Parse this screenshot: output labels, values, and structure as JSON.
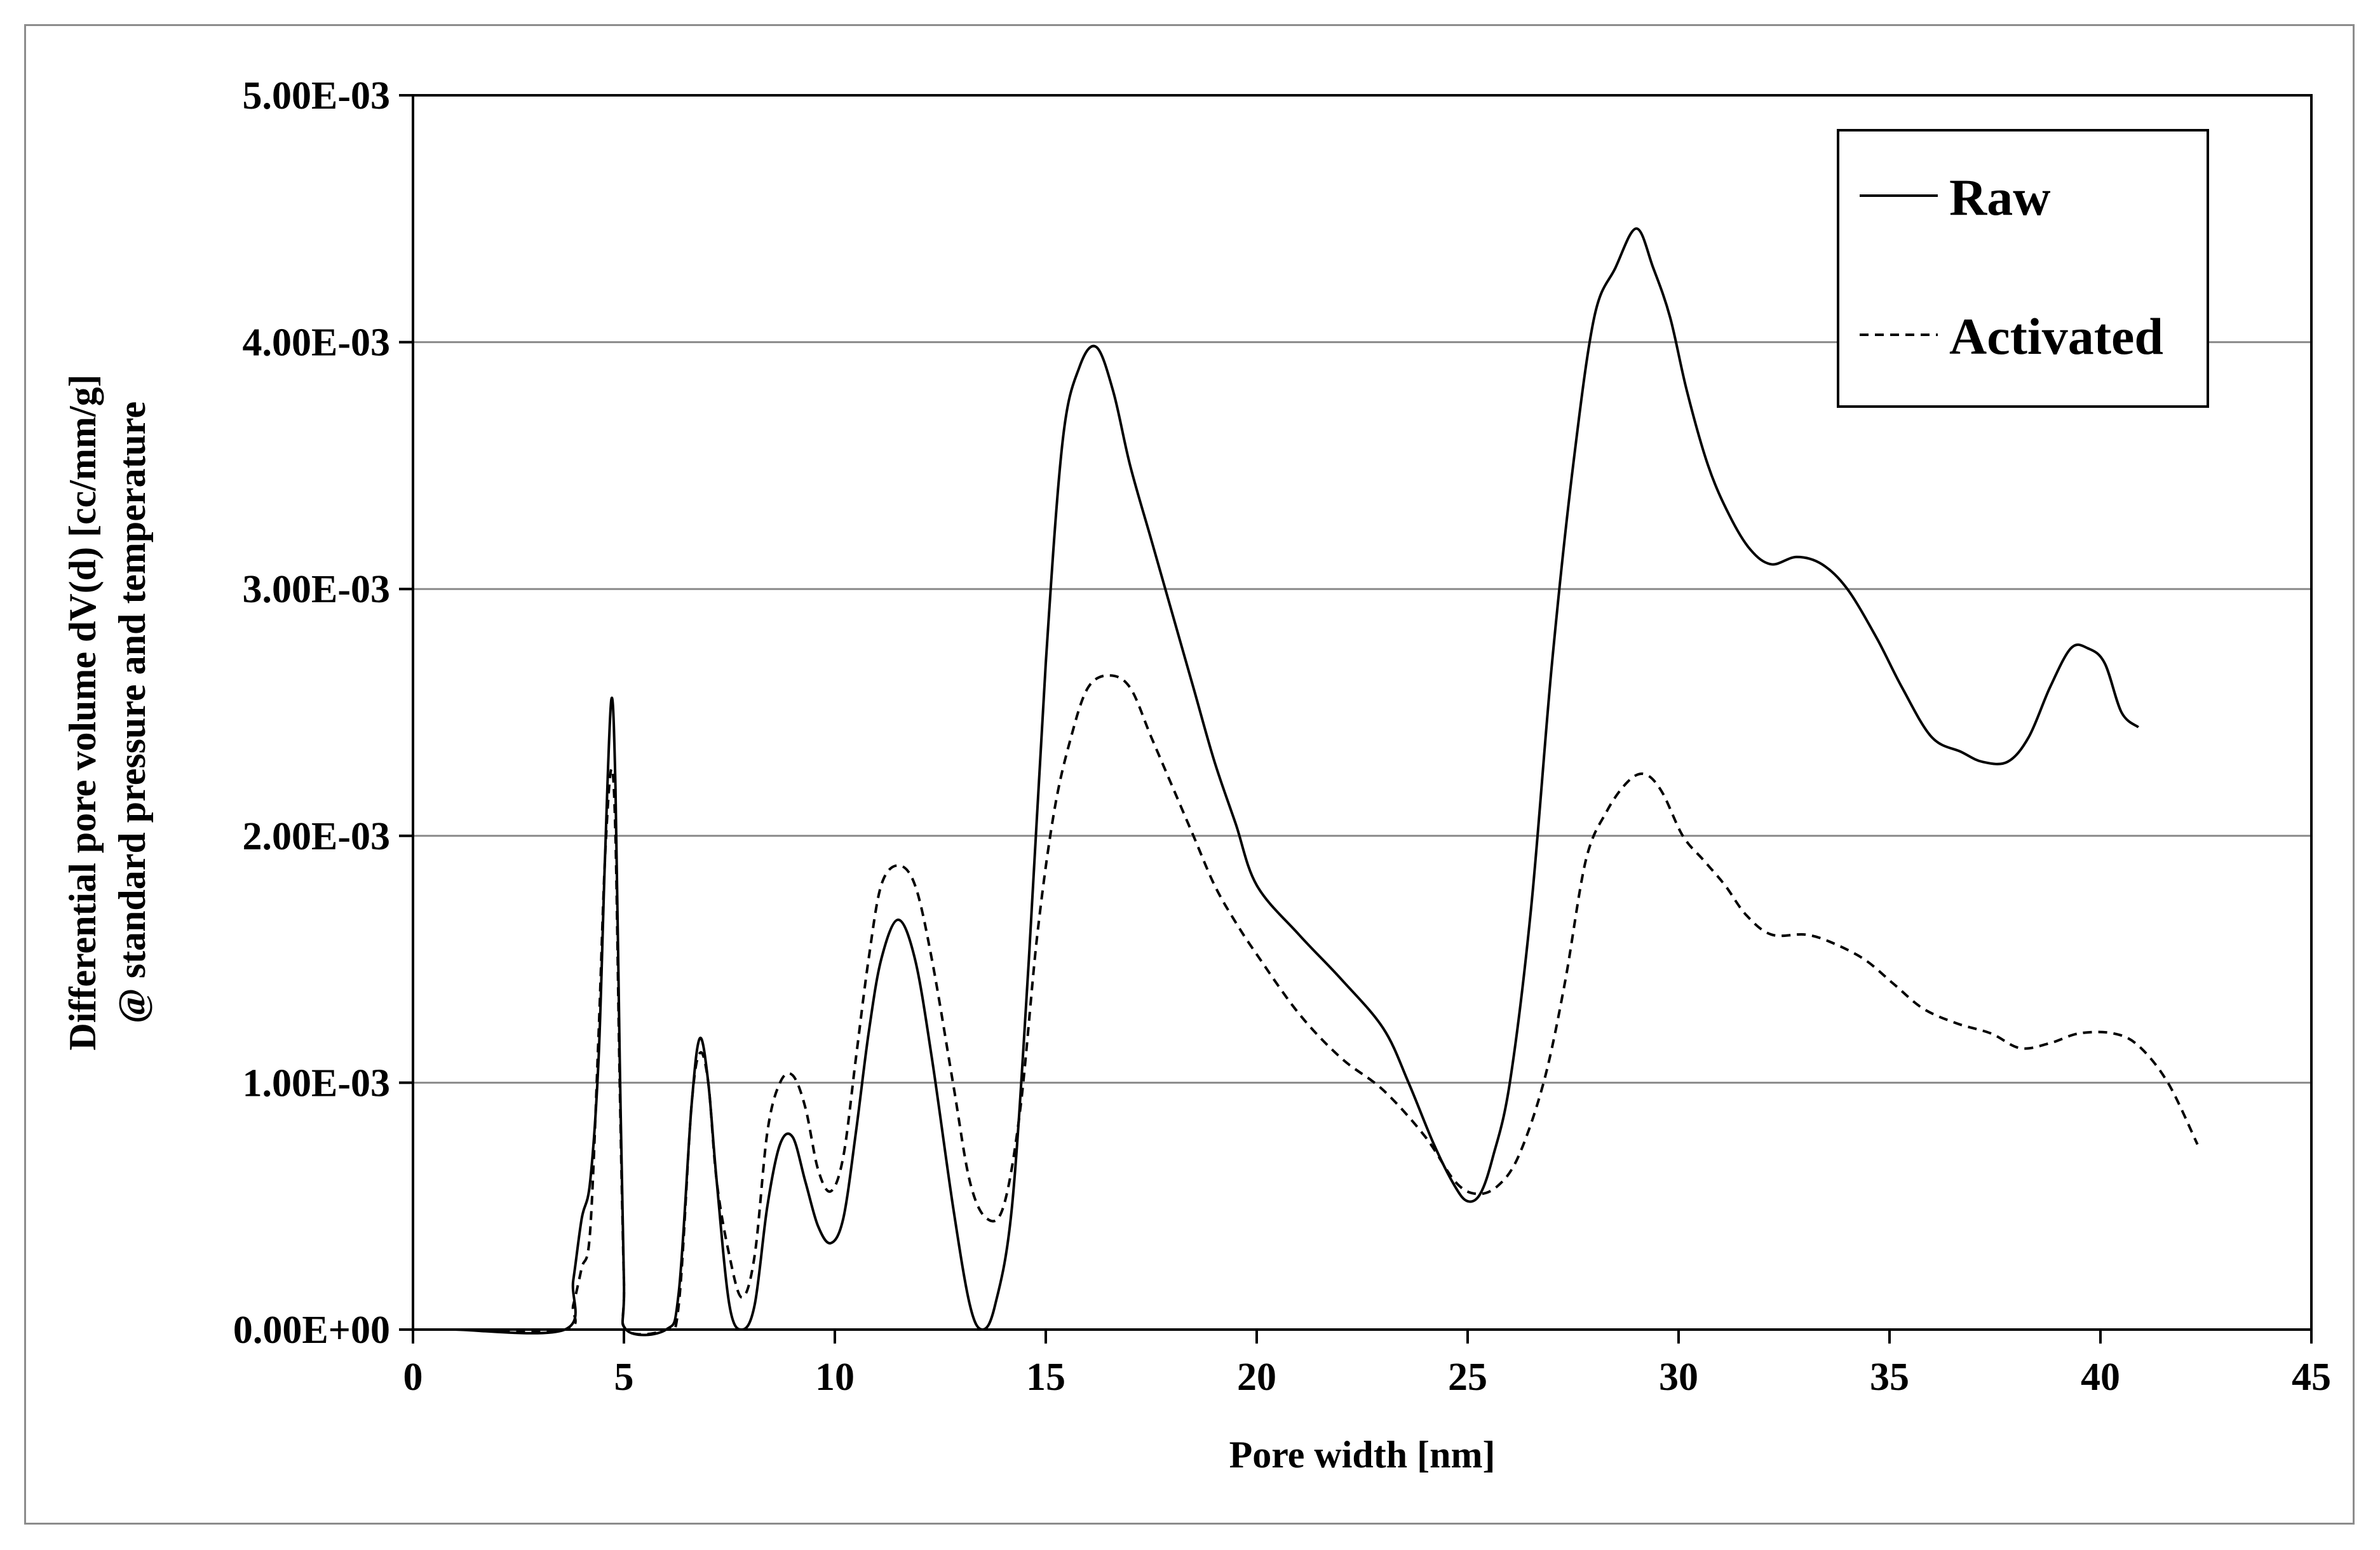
{
  "chart_data": {
    "type": "line",
    "title": "",
    "xlabel": "Pore width [nm]",
    "ylabel_line1": "Differential pore volume dV(d) [cc/mm/g]",
    "ylabel_line2": "@ standard pressure and temperature",
    "xlim": [
      0,
      45
    ],
    "ylim": [
      0,
      0.005
    ],
    "x_ticks": [
      0,
      5,
      10,
      15,
      20,
      25,
      30,
      35,
      40,
      45
    ],
    "x_tick_labels": [
      "0",
      "5",
      "10",
      "15",
      "20",
      "25",
      "30",
      "35",
      "40",
      "45"
    ],
    "y_ticks": [
      0,
      0.001,
      0.002,
      0.003,
      0.004,
      0.005
    ],
    "y_tick_labels": [
      "0.00E+00",
      "1.00E-03",
      "2.00E-03",
      "3.00E-03",
      "4.00E-03",
      "5.00E-03"
    ],
    "grid": "horizontal",
    "legend_position": "top-right",
    "series": [
      {
        "name": "Raw",
        "style": "solid",
        "color": "#000000",
        "points": [
          [
            1.0,
            0
          ],
          [
            3.6,
            0
          ],
          [
            3.8,
            0.0002
          ],
          [
            4.0,
            0.00045
          ],
          [
            4.2,
            0.0006
          ],
          [
            4.4,
            0.0011
          ],
          [
            4.55,
            0.0019
          ],
          [
            4.7,
            0.00255
          ],
          [
            4.8,
            0.0022
          ],
          [
            4.9,
            0.0011
          ],
          [
            5.0,
            0.0002
          ],
          [
            5.05,
            0
          ],
          [
            6.0,
            0
          ],
          [
            6.3,
            0.00015
          ],
          [
            6.6,
            0.0009
          ],
          [
            6.8,
            0.00118
          ],
          [
            7.0,
            0.001
          ],
          [
            7.2,
            0.0006
          ],
          [
            7.5,
            0.0001
          ],
          [
            7.8,
            0
          ],
          [
            8.1,
            0.0001
          ],
          [
            8.4,
            0.0005
          ],
          [
            8.7,
            0.00075
          ],
          [
            9.0,
            0.00078
          ],
          [
            9.3,
            0.0006
          ],
          [
            9.6,
            0.00042
          ],
          [
            9.9,
            0.00035
          ],
          [
            10.2,
            0.00045
          ],
          [
            10.5,
            0.0008
          ],
          [
            10.8,
            0.0012
          ],
          [
            11.1,
            0.0015
          ],
          [
            11.5,
            0.00166
          ],
          [
            11.9,
            0.0015
          ],
          [
            12.3,
            0.0011
          ],
          [
            12.8,
            0.0005
          ],
          [
            13.2,
            0.0001
          ],
          [
            13.5,
            0
          ],
          [
            13.8,
            0.0001
          ],
          [
            14.2,
            0.0005
          ],
          [
            14.6,
            0.0015
          ],
          [
            15.0,
            0.0027
          ],
          [
            15.4,
            0.0036
          ],
          [
            15.8,
            0.0039
          ],
          [
            16.2,
            0.00398
          ],
          [
            16.6,
            0.0038
          ],
          [
            17.0,
            0.0035
          ],
          [
            17.5,
            0.0032
          ],
          [
            18.0,
            0.0029
          ],
          [
            18.5,
            0.0026
          ],
          [
            19.0,
            0.0023
          ],
          [
            19.5,
            0.00205
          ],
          [
            20.0,
            0.0018
          ],
          [
            21.0,
            0.0016
          ],
          [
            22.0,
            0.00142
          ],
          [
            23.0,
            0.00122
          ],
          [
            23.6,
            0.001
          ],
          [
            24.2,
            0.00075
          ],
          [
            24.7,
            0.00058
          ],
          [
            25.0,
            0.00052
          ],
          [
            25.3,
            0.00055
          ],
          [
            25.6,
            0.0007
          ],
          [
            26.0,
            0.001
          ],
          [
            26.5,
            0.0017
          ],
          [
            27.0,
            0.0027
          ],
          [
            27.5,
            0.0035
          ],
          [
            28.0,
            0.0041
          ],
          [
            28.5,
            0.0043
          ],
          [
            29.0,
            0.00446
          ],
          [
            29.4,
            0.0043
          ],
          [
            29.8,
            0.0041
          ],
          [
            30.2,
            0.0038
          ],
          [
            30.7,
            0.0035
          ],
          [
            31.2,
            0.0033
          ],
          [
            31.7,
            0.00316
          ],
          [
            32.2,
            0.0031
          ],
          [
            32.8,
            0.00313
          ],
          [
            33.4,
            0.0031
          ],
          [
            34.0,
            0.003
          ],
          [
            34.7,
            0.0028
          ],
          [
            35.3,
            0.0026
          ],
          [
            36.0,
            0.0024
          ],
          [
            36.7,
            0.00234
          ],
          [
            37.2,
            0.0023
          ],
          [
            37.8,
            0.0023
          ],
          [
            38.3,
            0.0024
          ],
          [
            38.8,
            0.0026
          ],
          [
            39.3,
            0.00276
          ],
          [
            39.7,
            0.00276
          ],
          [
            40.1,
            0.0027
          ],
          [
            40.5,
            0.0025
          ],
          [
            40.9,
            0.00244
          ]
        ]
      },
      {
        "name": "Activated",
        "style": "dashed",
        "color": "#000000",
        "points": [
          [
            1.0,
            0
          ],
          [
            3.6,
            0
          ],
          [
            3.8,
            0.0001
          ],
          [
            4.0,
            0.00025
          ],
          [
            4.2,
            0.0004
          ],
          [
            4.4,
            0.0012
          ],
          [
            4.55,
            0.0019
          ],
          [
            4.7,
            0.00227
          ],
          [
            4.8,
            0.002
          ],
          [
            4.9,
            0.001
          ],
          [
            5.0,
            0.0002
          ],
          [
            5.05,
            0
          ],
          [
            6.0,
            0
          ],
          [
            6.3,
            0.0001
          ],
          [
            6.6,
            0.0009
          ],
          [
            6.8,
            0.00112
          ],
          [
            7.0,
            0.001
          ],
          [
            7.2,
            0.0006
          ],
          [
            7.5,
            0.0003
          ],
          [
            7.8,
            0.00013
          ],
          [
            8.1,
            0.0003
          ],
          [
            8.4,
            0.0008
          ],
          [
            8.7,
            0.001
          ],
          [
            9.0,
            0.00103
          ],
          [
            9.3,
            0.0009
          ],
          [
            9.6,
            0.00065
          ],
          [
            9.9,
            0.00056
          ],
          [
            10.2,
            0.0007
          ],
          [
            10.5,
            0.0011
          ],
          [
            10.8,
            0.0015
          ],
          [
            11.1,
            0.0018
          ],
          [
            11.5,
            0.00188
          ],
          [
            11.9,
            0.0018
          ],
          [
            12.3,
            0.0015
          ],
          [
            12.8,
            0.001
          ],
          [
            13.2,
            0.0006
          ],
          [
            13.6,
            0.00045
          ],
          [
            14.0,
            0.0005
          ],
          [
            14.4,
            0.0009
          ],
          [
            14.8,
            0.0016
          ],
          [
            15.2,
            0.0021
          ],
          [
            15.6,
            0.0024
          ],
          [
            16.0,
            0.0026
          ],
          [
            16.5,
            0.00265
          ],
          [
            17.0,
            0.0026
          ],
          [
            17.5,
            0.0024
          ],
          [
            18.0,
            0.0022
          ],
          [
            18.5,
            0.002
          ],
          [
            19.0,
            0.0018
          ],
          [
            19.5,
            0.00165
          ],
          [
            20.0,
            0.00152
          ],
          [
            21.0,
            0.00128
          ],
          [
            22.0,
            0.0011
          ],
          [
            23.0,
            0.00097
          ],
          [
            24.0,
            0.00078
          ],
          [
            24.7,
            0.0006
          ],
          [
            25.2,
            0.00055
          ],
          [
            25.7,
            0.00058
          ],
          [
            26.2,
            0.0007
          ],
          [
            26.8,
            0.001
          ],
          [
            27.3,
            0.0014
          ],
          [
            27.8,
            0.0019
          ],
          [
            28.3,
            0.0021
          ],
          [
            28.8,
            0.00222
          ],
          [
            29.2,
            0.00225
          ],
          [
            29.6,
            0.00218
          ],
          [
            30.1,
            0.002
          ],
          [
            30.6,
            0.0019
          ],
          [
            31.1,
            0.0018
          ],
          [
            31.6,
            0.00168
          ],
          [
            32.2,
            0.0016
          ],
          [
            33.0,
            0.0016
          ],
          [
            33.6,
            0.00157
          ],
          [
            34.4,
            0.0015
          ],
          [
            35.1,
            0.0014
          ],
          [
            35.8,
            0.0013
          ],
          [
            36.6,
            0.00124
          ],
          [
            37.4,
            0.0012
          ],
          [
            38.1,
            0.00114
          ],
          [
            38.8,
            0.00116
          ],
          [
            39.5,
            0.0012
          ],
          [
            40.3,
            0.0012
          ],
          [
            40.9,
            0.00115
          ],
          [
            41.6,
            0.001
          ],
          [
            42.3,
            0.00075
          ]
        ]
      }
    ]
  }
}
